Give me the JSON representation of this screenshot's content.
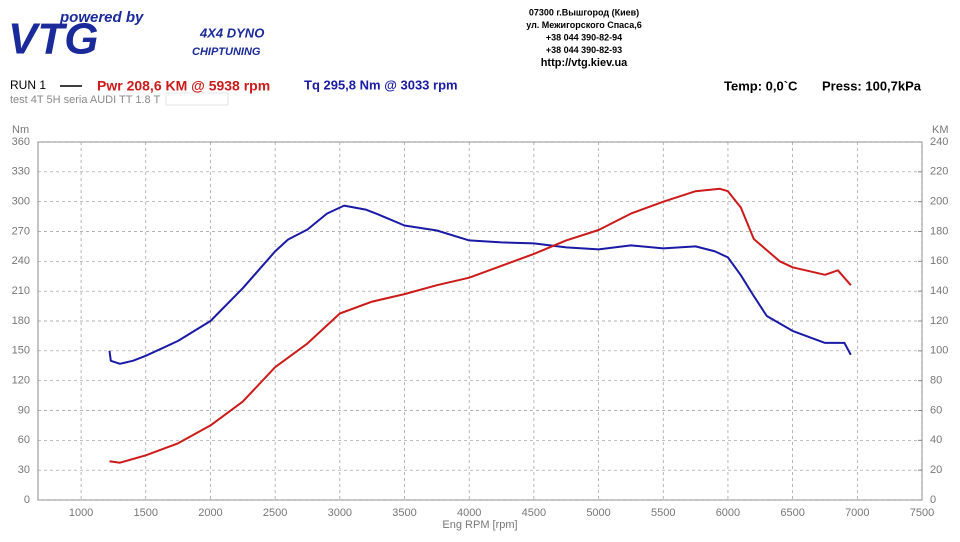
{
  "header": {
    "tagline": "powered by",
    "logo": "VTG",
    "brand": "4X4 DYNO",
    "brand_sub": "CHIPTUNING",
    "address": [
      "07300 г.Вышгород (Киев)",
      "ул. Межигорского Спаса,6",
      "+38 044 390-82-94",
      "+38 044 390-82-93",
      "http://vtg.kiev.ua"
    ]
  },
  "run": {
    "label": "RUN 1",
    "power": "Pwr  208,6 KM @ 5938 rpm",
    "torque": "Tq 295,8 Nm @ 3033 rpm",
    "temp": "Temp: 0,0`C",
    "press": "Press: 100,7kPa",
    "description": "test  4T 5H  seria AUDI TT 1.8 T"
  },
  "chart_data": {
    "type": "line",
    "x_label": "Eng RPM [rpm]",
    "y_label": "Nm",
    "y2_label": "KM",
    "xlim": [
      667,
      7500
    ],
    "xticks": [
      1000,
      1500,
      2000,
      2500,
      3000,
      3500,
      4000,
      4500,
      5000,
      5500,
      6000,
      6500,
      7000,
      7500
    ],
    "ylim": [
      0,
      360
    ],
    "yticks": [
      0,
      30,
      60,
      90,
      120,
      150,
      180,
      210,
      240,
      270,
      300,
      330,
      360
    ],
    "y2lim": [
      0,
      240
    ],
    "y2ticks": [
      0,
      20,
      40,
      60,
      80,
      100,
      120,
      140,
      160,
      180,
      200,
      220,
      240
    ],
    "grid": true,
    "series": [
      {
        "color": "#1a1aa6",
        "x": [
          1220,
          1230,
          1300,
          1400,
          1500,
          1750,
          2000,
          2250,
          2500,
          2600,
          2750,
          2900,
          3033,
          3200,
          3300,
          3500,
          3750,
          4000,
          4250,
          4500,
          4750,
          5000,
          5250,
          5500,
          5750,
          5900,
          6000,
          6100,
          6200,
          6300,
          6500,
          6750,
          6900,
          6950
        ],
        "values": [
          150,
          140,
          137,
          140,
          145,
          160,
          180,
          213,
          250,
          262,
          272,
          288,
          296,
          292,
          287,
          276,
          271,
          261,
          259,
          258,
          254,
          252,
          256,
          253,
          255,
          250,
          244,
          226,
          205,
          185,
          170,
          158,
          158,
          146
        ]
      },
      {
        "color": "#cc1a1a",
        "axis": "y2",
        "x": [
          1220,
          1300,
          1500,
          1750,
          2000,
          2250,
          2500,
          2750,
          3000,
          3250,
          3500,
          3750,
          4000,
          4250,
          4500,
          4750,
          5000,
          5250,
          5500,
          5750,
          5938,
          6000,
          6100,
          6200,
          6400,
          6500,
          6750,
          6850,
          6950
        ],
        "values": [
          26,
          25,
          30,
          38,
          50,
          66,
          89,
          105,
          125,
          133,
          138,
          144,
          149,
          157,
          165,
          174,
          181,
          192,
          200,
          207,
          208.6,
          207,
          196,
          175,
          160,
          156,
          151,
          154,
          144
        ]
      }
    ]
  }
}
